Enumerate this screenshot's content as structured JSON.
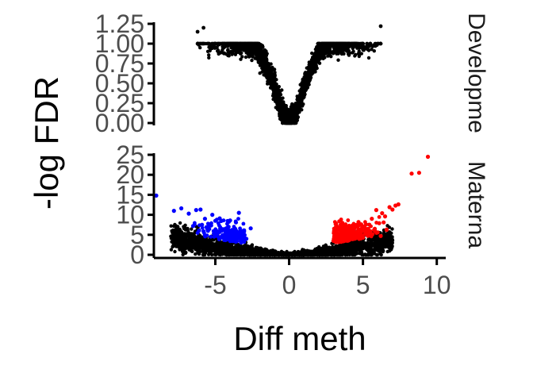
{
  "chart_data": {
    "type": "scatter",
    "xlabel": "Diff meth",
    "ylabel": "-log FDR",
    "xlim": [
      -9,
      10.5
    ],
    "x_ticks": [
      "-5",
      "0",
      "5",
      "10"
    ],
    "x_tick_values": [
      -5,
      0,
      5,
      10
    ],
    "legend": "none",
    "grid": false,
    "colors": {
      "not_significant": "#000000",
      "hypo": "#0000ff",
      "hyper": "#ff0000"
    },
    "panels": [
      {
        "strip_label": "Developme",
        "ylim": [
          0,
          1.25
        ],
        "y_ticks": [
          "0.00",
          "0.25",
          "0.50",
          "0.75",
          "1.00",
          "1.25"
        ],
        "y_tick_values": [
          0,
          0.25,
          0.5,
          0.75,
          1.0,
          1.25
        ],
        "series": [
          {
            "group": "not_significant",
            "points": [
              [
                -6.0,
                1.0
              ],
              [
                -5.5,
                1.0
              ],
              [
                -5.0,
                1.0
              ],
              [
                -4.5,
                1.0
              ],
              [
                -4.0,
                1.0
              ],
              [
                -3.5,
                1.0
              ],
              [
                -3.0,
                1.0
              ],
              [
                -2.5,
                1.0
              ],
              [
                -2.0,
                0.9
              ],
              [
                -1.5,
                0.7
              ],
              [
                -1.0,
                0.45
              ],
              [
                -0.5,
                0.15
              ],
              [
                0.0,
                0.0
              ],
              [
                0.5,
                0.15
              ],
              [
                1.0,
                0.45
              ],
              [
                1.5,
                0.7
              ],
              [
                2.0,
                0.9
              ],
              [
                2.5,
                1.0
              ],
              [
                3.0,
                1.0
              ],
              [
                3.5,
                1.0
              ],
              [
                4.0,
                1.0
              ],
              [
                4.5,
                1.0
              ],
              [
                5.0,
                1.0
              ],
              [
                5.5,
                1.0
              ],
              [
                6.0,
                1.0
              ],
              [
                -5.8,
                1.2
              ],
              [
                -6.2,
                1.15
              ],
              [
                6.2,
                1.22
              ]
            ]
          }
        ]
      },
      {
        "strip_label": "Materna",
        "ylim": [
          0,
          25
        ],
        "y_ticks": [
          "0",
          "5",
          "10",
          "15",
          "20",
          "25"
        ],
        "y_tick_values": [
          0,
          5,
          10,
          15,
          20,
          25
        ],
        "series": [
          {
            "group": "hypo",
            "points": [
              [
                -9.0,
                14.8
              ],
              [
                -7.8,
                11.0
              ],
              [
                -7.3,
                11.6
              ],
              [
                -6.8,
                10.3
              ],
              [
                -6.3,
                11.2
              ],
              [
                -6.0,
                11.3
              ],
              [
                -5.9,
                7.5
              ],
              [
                -5.7,
                9.0
              ],
              [
                -5.5,
                6.0
              ],
              [
                -5.3,
                7.3
              ],
              [
                -5.2,
                10.0
              ],
              [
                -5.0,
                8.5
              ],
              [
                -4.9,
                4.8
              ],
              [
                -4.7,
                9.1
              ],
              [
                -4.5,
                6.4
              ],
              [
                -4.3,
                5.1
              ],
              [
                -4.1,
                7.0
              ],
              [
                -4.0,
                8.6
              ],
              [
                -3.8,
                5.2
              ],
              [
                -3.6,
                8.1
              ],
              [
                -3.5,
                4.3
              ],
              [
                -3.3,
                5.9
              ],
              [
                -3.1,
                4.6
              ],
              [
                -2.9,
                4.0
              ],
              [
                -5.6,
                6.9
              ],
              [
                -6.1,
                6.1
              ],
              [
                -4.6,
                4.5
              ],
              [
                -3.9,
                5.6
              ],
              [
                -5.1,
                5.3
              ],
              [
                -6.5,
                7.2
              ],
              [
                -5.8,
                5.9
              ],
              [
                -4.4,
                4.0
              ],
              [
                -3.4,
                10.5
              ],
              [
                -2.6,
                6.6
              ]
            ]
          },
          {
            "group": "hyper",
            "points": [
              [
                3.0,
                3.5
              ],
              [
                3.2,
                4.4
              ],
              [
                3.5,
                4.1
              ],
              [
                3.8,
                5.2
              ],
              [
                4.0,
                3.9
              ],
              [
                4.2,
                6.4
              ],
              [
                4.5,
                5.1
              ],
              [
                4.7,
                8.2
              ],
              [
                5.0,
                6.0
              ],
              [
                5.2,
                7.6
              ],
              [
                5.5,
                4.8
              ],
              [
                5.6,
                9.0
              ],
              [
                5.8,
                6.5
              ],
              [
                5.9,
                11.2
              ],
              [
                6.0,
                5.6
              ],
              [
                6.1,
                7.9
              ],
              [
                6.2,
                4.7
              ],
              [
                6.3,
                10.4
              ],
              [
                6.5,
                9.6
              ],
              [
                6.6,
                6.3
              ],
              [
                6.8,
                11.9
              ],
              [
                7.0,
                11.3
              ],
              [
                7.2,
                12.3
              ],
              [
                7.4,
                12.6
              ],
              [
                8.3,
                20.3
              ],
              [
                8.8,
                20.5
              ],
              [
                9.4,
                24.5
              ],
              [
                4.3,
                4.6
              ],
              [
                4.9,
                4.3
              ],
              [
                5.4,
                5.7
              ],
              [
                3.6,
                6.2
              ],
              [
                6.4,
                8.1
              ]
            ]
          },
          {
            "group": "not_significant",
            "points": [
              [
                -8.0,
                4.6
              ],
              [
                -7.0,
                3.6
              ],
              [
                -6.0,
                2.8
              ],
              [
                -5.0,
                2.0
              ],
              [
                -4.0,
                1.4
              ],
              [
                -3.0,
                0.9
              ],
              [
                -2.0,
                0.5
              ],
              [
                -1.0,
                0.2
              ],
              [
                0.0,
                0.0
              ],
              [
                1.0,
                0.2
              ],
              [
                2.0,
                0.5
              ],
              [
                3.0,
                0.9
              ],
              [
                4.0,
                1.4
              ],
              [
                5.0,
                2.0
              ],
              [
                6.0,
                2.8
              ],
              [
                7.0,
                3.6
              ]
            ]
          }
        ]
      }
    ]
  }
}
